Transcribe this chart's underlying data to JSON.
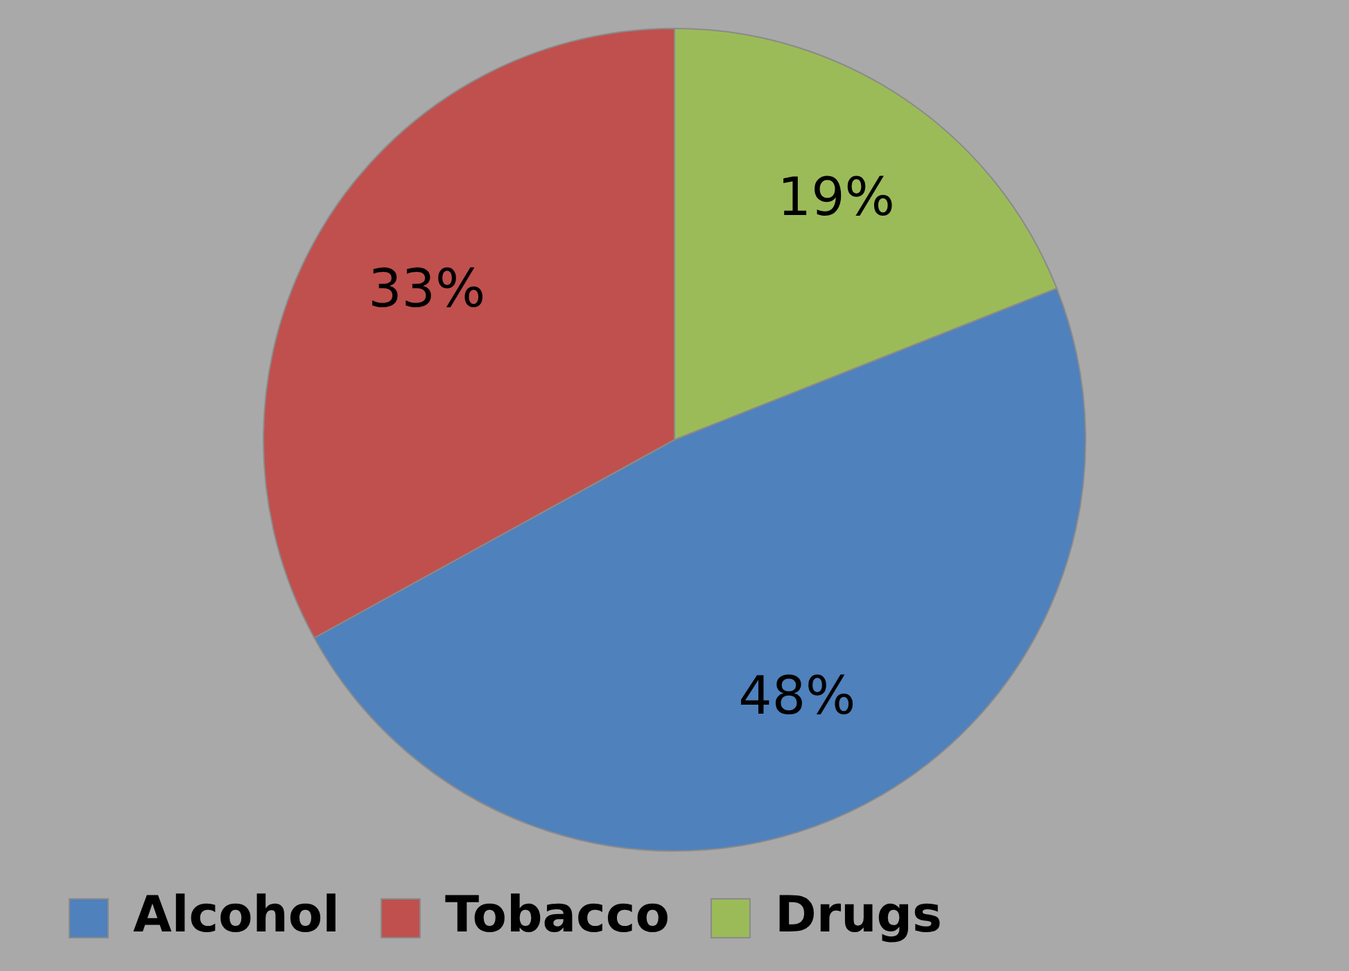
{
  "chart_data": {
    "type": "pie",
    "categories": [
      "Alcohol",
      "Tobacco",
      "Drugs"
    ],
    "values": [
      48,
      33,
      19
    ],
    "colors": [
      "#4f81bd",
      "#c0504d",
      "#9bbb59"
    ],
    "value_labels": [
      "48%",
      "33%",
      "19%"
    ],
    "legend": "bottom left"
  }
}
